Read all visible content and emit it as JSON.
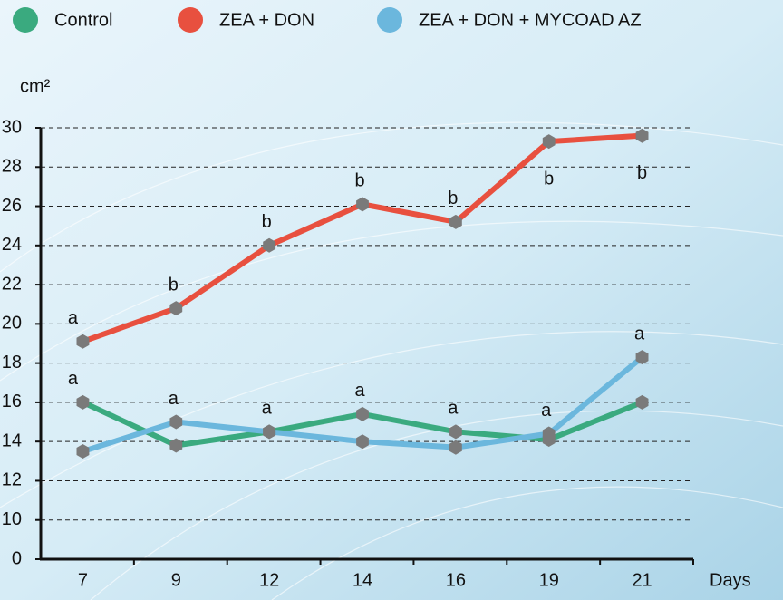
{
  "chart_data": {
    "type": "line",
    "y_label": "cm²",
    "x_label": "Days",
    "categories": [
      "7",
      "9",
      "12",
      "14",
      "16",
      "19",
      "21"
    ],
    "series": [
      {
        "name": "Control",
        "color": "#3aaa7f",
        "values": [
          16,
          13.8,
          14.5,
          15.4,
          14.5,
          14.1,
          16
        ],
        "labels": [
          "a",
          null,
          "a",
          "a",
          "a",
          null,
          null
        ]
      },
      {
        "name": "ZEA + DON",
        "color": "#e8503f",
        "values": [
          19.1,
          20.8,
          24,
          26.1,
          25.2,
          29.3,
          29.6
        ],
        "labels": [
          "a",
          "b",
          "b",
          "b",
          "b",
          "b",
          "b"
        ]
      },
      {
        "name": "ZEA + DON + MYCOAD AZ",
        "color": "#6bb7dd",
        "values": [
          13.5,
          15,
          14.5,
          14,
          13.7,
          14.4,
          18.3
        ],
        "labels": [
          null,
          "a",
          null,
          null,
          null,
          "a",
          "a"
        ]
      }
    ],
    "ylim": [
      0,
      30
    ],
    "yticks": [
      0,
      10,
      12,
      14,
      16,
      18,
      20,
      22,
      24,
      26,
      28,
      30
    ],
    "grid": true,
    "marker_color": "#7a7a7a"
  }
}
